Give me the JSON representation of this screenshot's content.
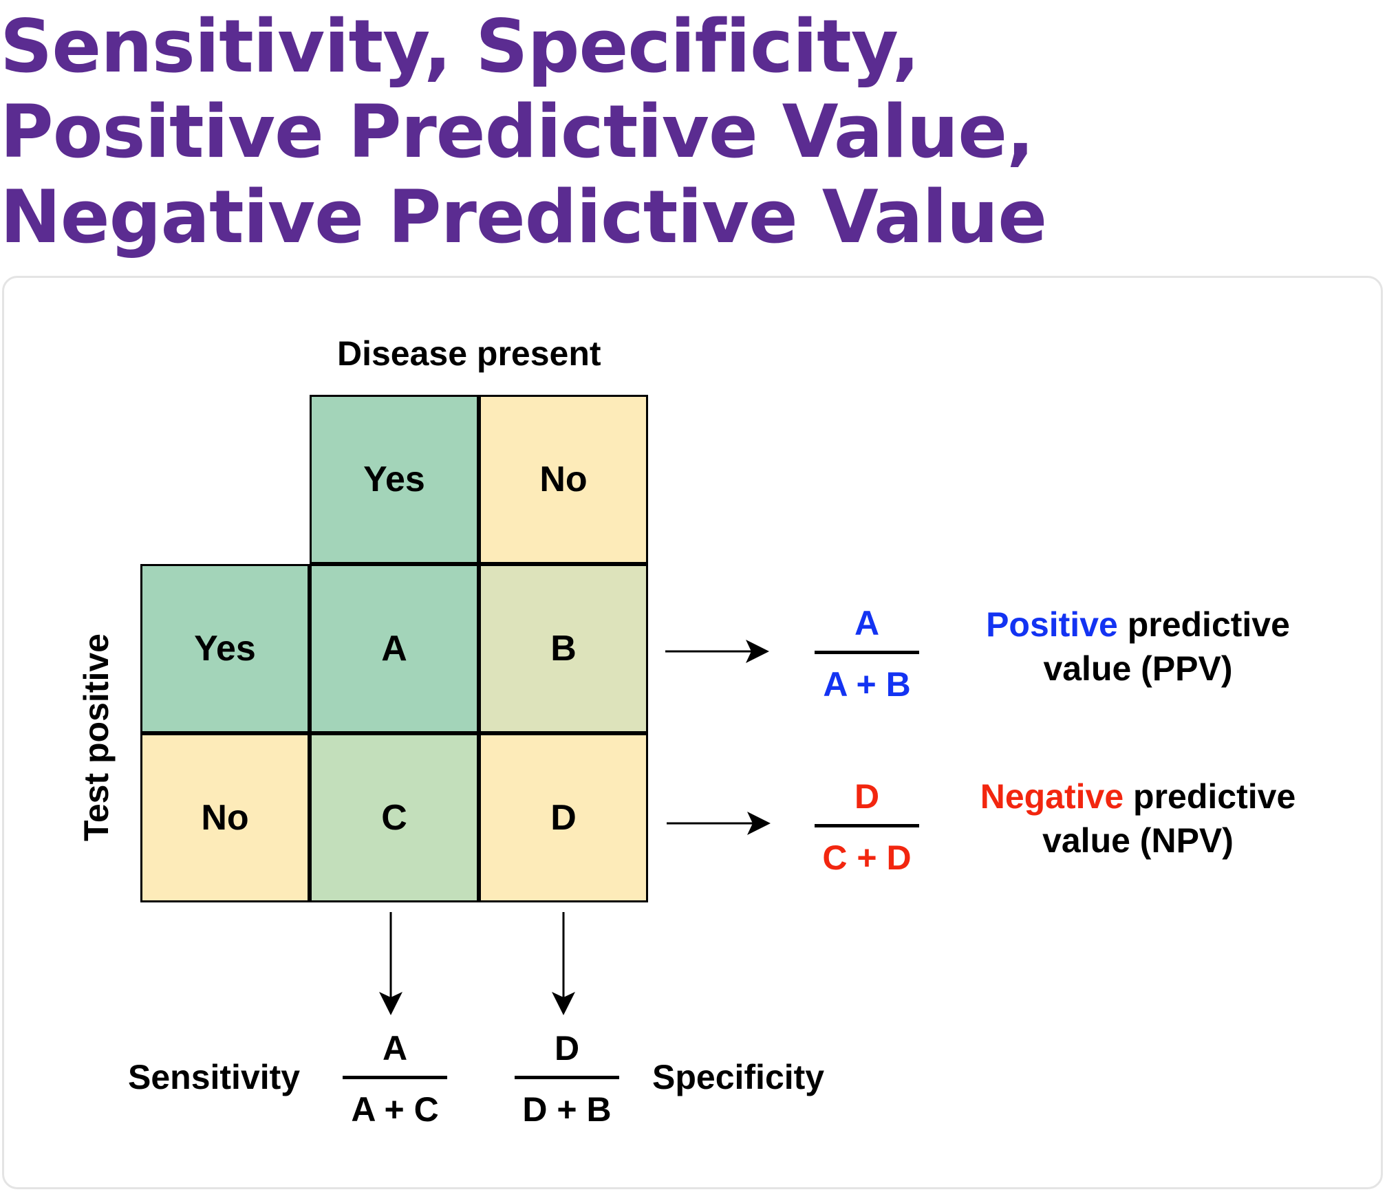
{
  "colors": {
    "title": "#5b2c91",
    "positive": "#1333f2",
    "negative": "#f2260f",
    "green_dark": "#a3d4b9",
    "green_light": "#c3dfbb",
    "yellow": "#fdebb9",
    "olive": "#dde3bb"
  },
  "title_lines": [
    "Sensitivity, Specificity,",
    "Positive Predictive Value,",
    "Negative Predictive Value"
  ],
  "disease_header": "Disease present",
  "test_header": "Test positive",
  "column_headers": [
    "Yes",
    "No"
  ],
  "row_headers": [
    "Yes",
    "No"
  ],
  "cells": [
    "A",
    "B",
    "C",
    "D"
  ],
  "ppv": {
    "numerator": "A",
    "denominator": "A + B",
    "highlight": "Positive",
    "rest": " predictive",
    "line2": "value (PPV)"
  },
  "npv": {
    "numerator": "D",
    "denominator": "C + D",
    "highlight": "Negative",
    "rest": " predictive",
    "line2": "value (NPV)"
  },
  "sensitivity": {
    "label": "Sensitivity",
    "numerator": "A",
    "denominator": "A + C"
  },
  "specificity": {
    "label": "Specificity",
    "numerator": "D",
    "denominator": "D + B"
  }
}
